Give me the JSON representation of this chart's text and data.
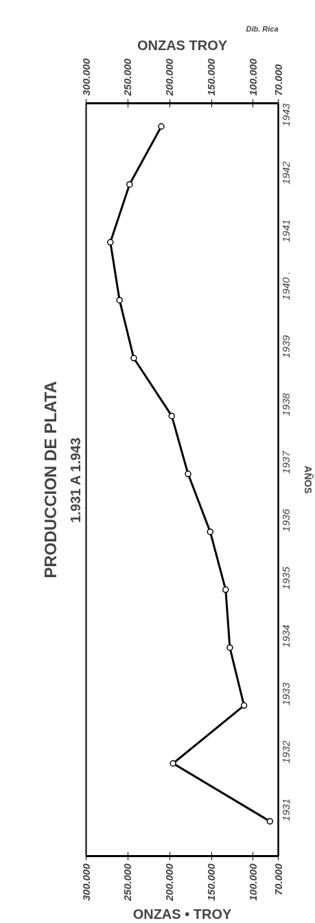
{
  "chart_data": {
    "type": "line",
    "title": "PRODUCCION DE PLATA",
    "subtitle": "1.931 A 1.943",
    "xlabel": "ONZAS TROY",
    "x2label": "ONZAS • TROY",
    "ylabel": "AÑOS",
    "annotations": [
      "Dib. Rica"
    ],
    "orientation": "horizontal",
    "categories": [
      "1943",
      "1942",
      "1941",
      "1940 .",
      "1939",
      "1938",
      "1937",
      "1936",
      "1935",
      "1934",
      "1933",
      "1932",
      "1931"
    ],
    "series": [
      {
        "color": "#000000",
        "values": [
          210000,
          248000,
          271000,
          260000,
          243000,
          197500,
          178000,
          151500,
          133000,
          128000,
          111000,
          196000,
          80000
        ]
      }
    ],
    "xlim": [
      300000,
      70000
    ],
    "xticks": [
      {
        "value": 300000,
        "label": "300.000"
      },
      {
        "value": 250000,
        "label": "250.000"
      },
      {
        "value": 200000,
        "label": "200.000"
      },
      {
        "value": 150000,
        "label": "150.000"
      },
      {
        "value": 100000,
        "label": "100.000"
      },
      {
        "value": 70000,
        "label": "70.000"
      }
    ],
    "x2lim": [
      300000,
      70000
    ],
    "x2ticks": [
      {
        "value": 300000,
        "label": "300.000"
      },
      {
        "value": 250000,
        "label": "250.000"
      },
      {
        "value": 200000,
        "label": "200.000"
      },
      {
        "value": 150000,
        "label": "150.000"
      },
      {
        "value": 100000,
        "label": "100.000"
      },
      {
        "value": 70000,
        "label": "70.000"
      }
    ],
    "marker": "circle",
    "line_style": "solid",
    "grid": false
  }
}
